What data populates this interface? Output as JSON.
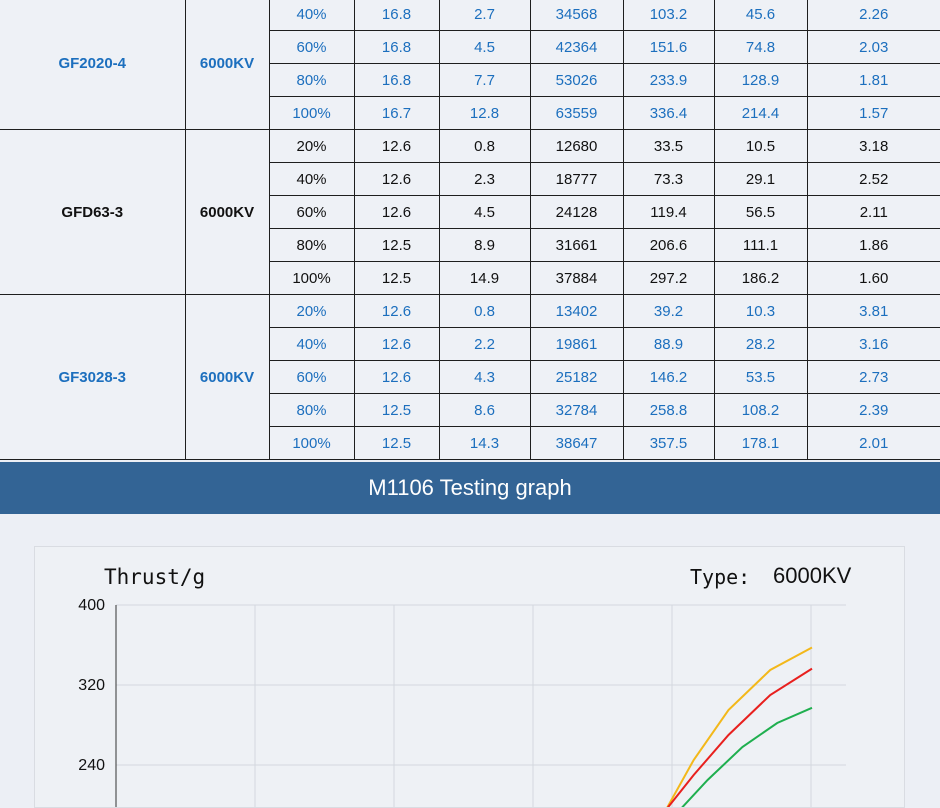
{
  "table": {
    "groups": [
      {
        "model": "GF2020-4",
        "kv": "6000KV",
        "color": "#1c6fbe",
        "rows": [
          [
            "40%",
            "16.8",
            "2.7",
            "34568",
            "103.2",
            "45.6",
            "2.26"
          ],
          [
            "60%",
            "16.8",
            "4.5",
            "42364",
            "151.6",
            "74.8",
            "2.03"
          ],
          [
            "80%",
            "16.8",
            "7.7",
            "53026",
            "233.9",
            "128.9",
            "1.81"
          ],
          [
            "100%",
            "16.7",
            "12.8",
            "63559",
            "336.4",
            "214.4",
            "1.57"
          ]
        ]
      },
      {
        "model": "GFD63-3",
        "kv": "6000KV",
        "color": "#111111",
        "rows": [
          [
            "20%",
            "12.6",
            "0.8",
            "12680",
            "33.5",
            "10.5",
            "3.18"
          ],
          [
            "40%",
            "12.6",
            "2.3",
            "18777",
            "73.3",
            "29.1",
            "2.52"
          ],
          [
            "60%",
            "12.6",
            "4.5",
            "24128",
            "119.4",
            "56.5",
            "2.11"
          ],
          [
            "80%",
            "12.5",
            "8.9",
            "31661",
            "206.6",
            "111.1",
            "1.86"
          ],
          [
            "100%",
            "12.5",
            "14.9",
            "37884",
            "297.2",
            "186.2",
            "1.60"
          ]
        ]
      },
      {
        "model": "GF3028-3",
        "kv": "6000KV",
        "color": "#1c6fbe",
        "rows": [
          [
            "20%",
            "12.6",
            "0.8",
            "13402",
            "39.2",
            "10.3",
            "3.81"
          ],
          [
            "40%",
            "12.6",
            "2.2",
            "19861",
            "88.9",
            "28.2",
            "3.16"
          ],
          [
            "60%",
            "12.6",
            "4.3",
            "25182",
            "146.2",
            "53.5",
            "2.73"
          ],
          [
            "80%",
            "12.5",
            "8.6",
            "32784",
            "258.8",
            "108.2",
            "2.39"
          ],
          [
            "100%",
            "12.5",
            "14.3",
            "38647",
            "357.5",
            "178.1",
            "2.01"
          ]
        ]
      }
    ]
  },
  "banner": {
    "title": "M1106 Testing graph"
  },
  "chart_header": {
    "y_title": "Thrust/g",
    "type_label": "Type:",
    "type_value": "6000KV"
  },
  "chart_data": {
    "type": "line",
    "ylabel": "Thrust/g",
    "ylim": [
      200,
      400
    ],
    "y_ticks": [
      "400",
      "320",
      "240"
    ],
    "x_gridlines": 6,
    "series": [
      {
        "color": "#f3b81a",
        "x": [
          0.79,
          0.83,
          0.88,
          0.94,
          1.0
        ],
        "values": [
          195,
          245,
          295,
          335,
          357.5
        ]
      },
      {
        "color": "#e8201e",
        "x": [
          0.79,
          0.83,
          0.88,
          0.94,
          1.0
        ],
        "values": [
          195,
          230,
          270,
          310,
          336.4
        ]
      },
      {
        "color": "#1faf4f",
        "x": [
          0.81,
          0.85,
          0.9,
          0.95,
          1.0
        ],
        "values": [
          195,
          225,
          258,
          282,
          297.2
        ]
      }
    ],
    "colors": {
      "grid": "#d4d8df",
      "axis": "#333333"
    }
  }
}
